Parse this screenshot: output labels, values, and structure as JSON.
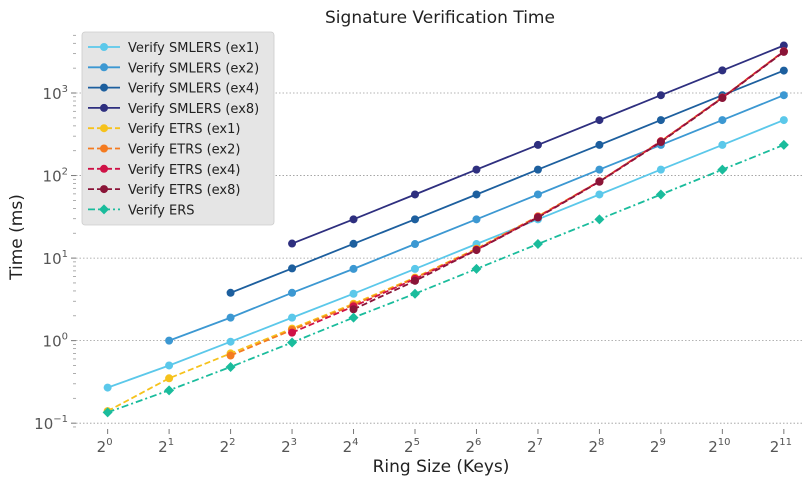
{
  "chart_data": {
    "type": "line",
    "title": "Signature Verification Time",
    "xlabel": "Ring Size (Keys)",
    "ylabel": "Time (ms)",
    "x_scale": "log2",
    "y_scale": "log10",
    "x_ticks": [
      {
        "base": "2",
        "exp": "0",
        "value": 1
      },
      {
        "base": "2",
        "exp": "1",
        "value": 2
      },
      {
        "base": "2",
        "exp": "2",
        "value": 4
      },
      {
        "base": "2",
        "exp": "3",
        "value": 8
      },
      {
        "base": "2",
        "exp": "4",
        "value": 16
      },
      {
        "base": "2",
        "exp": "5",
        "value": 32
      },
      {
        "base": "2",
        "exp": "6",
        "value": 64
      },
      {
        "base": "2",
        "exp": "7",
        "value": 128
      },
      {
        "base": "2",
        "exp": "8",
        "value": 256
      },
      {
        "base": "2",
        "exp": "9",
        "value": 512
      },
      {
        "base": "2",
        "exp": "10",
        "value": 1024
      },
      {
        "base": "2",
        "exp": "11",
        "value": 2048
      }
    ],
    "y_ticks": [
      {
        "base": "10",
        "exp": "−1",
        "value": 0.1
      },
      {
        "base": "10",
        "exp": "0",
        "value": 1
      },
      {
        "base": "10",
        "exp": "1",
        "value": 10
      },
      {
        "base": "10",
        "exp": "2",
        "value": 100
      },
      {
        "base": "10",
        "exp": "3",
        "value": 1000
      }
    ],
    "xlim": [
      0.7,
      2600
    ],
    "ylim": [
      0.085,
      5800
    ],
    "grid": "horizontal dotted at major y ticks",
    "legend_position": "top-left",
    "series": [
      {
        "name": "Verify SMLERS (ex1)",
        "color": "#5bc8ea",
        "linestyle": "solid",
        "marker": "circle",
        "x": [
          1,
          2,
          4,
          8,
          16,
          32,
          64,
          128,
          256,
          512,
          1024,
          2048
        ],
        "y": [
          0.27,
          0.5,
          0.97,
          1.9,
          3.7,
          7.4,
          14.8,
          29.5,
          59,
          118,
          235,
          470
        ]
      },
      {
        "name": "Verify SMLERS (ex2)",
        "color": "#3c98d2",
        "linestyle": "solid",
        "marker": "circle",
        "x": [
          2,
          4,
          8,
          16,
          32,
          64,
          128,
          256,
          512,
          1024,
          2048
        ],
        "y": [
          1.0,
          1.9,
          3.8,
          7.4,
          14.8,
          29.5,
          59,
          118,
          235,
          470,
          940
        ]
      },
      {
        "name": "Verify SMLERS (ex4)",
        "color": "#1d5f9e",
        "linestyle": "solid",
        "marker": "circle",
        "x": [
          4,
          8,
          16,
          32,
          64,
          128,
          256,
          512,
          1024,
          2048
        ],
        "y": [
          3.8,
          7.5,
          14.9,
          29.5,
          59,
          118,
          235,
          470,
          940,
          1870
        ]
      },
      {
        "name": "Verify SMLERS (ex8)",
        "color": "#2e2f7f",
        "linestyle": "solid",
        "marker": "circle",
        "x": [
          8,
          16,
          32,
          64,
          128,
          256,
          512,
          1024,
          2048
        ],
        "y": [
          15,
          29.5,
          59,
          118,
          235,
          470,
          940,
          1880,
          3760
        ]
      },
      {
        "name": "Verify ETRS (ex1)",
        "color": "#f6c21c",
        "linestyle": "dashed",
        "marker": "circle",
        "x": [
          1,
          2,
          4,
          8,
          16,
          32,
          64,
          128,
          256,
          512,
          1024,
          2048
        ],
        "y": [
          0.14,
          0.35,
          0.7,
          1.4,
          2.8,
          5.8,
          13,
          32,
          85,
          260,
          880,
          3200
        ]
      },
      {
        "name": "Verify ETRS (ex2)",
        "color": "#f47b20",
        "linestyle": "dashed",
        "marker": "circle",
        "x": [
          4,
          8,
          16,
          32,
          64,
          128,
          256,
          512,
          1024,
          2048
        ],
        "y": [
          0.66,
          1.35,
          2.7,
          5.7,
          12.8,
          32,
          85,
          260,
          880,
          3200
        ]
      },
      {
        "name": "Verify ETRS (ex4)",
        "color": "#cf1247",
        "linestyle": "dashed",
        "marker": "circle",
        "x": [
          8,
          16,
          32,
          64,
          128,
          256,
          512,
          1024,
          2048
        ],
        "y": [
          1.25,
          2.6,
          5.6,
          12.6,
          31.5,
          85,
          260,
          880,
          3200
        ]
      },
      {
        "name": "Verify ETRS (ex8)",
        "color": "#8a1538",
        "linestyle": "dashed",
        "marker": "circle",
        "x": [
          16,
          32,
          64,
          128,
          256,
          512,
          1024,
          2048
        ],
        "y": [
          2.4,
          5.3,
          12.5,
          31,
          84,
          255,
          870,
          3150
        ]
      },
      {
        "name": "Verify ERS",
        "color": "#1abc9c",
        "linestyle": "dashdot",
        "marker": "diamond",
        "x": [
          1,
          2,
          4,
          8,
          16,
          32,
          64,
          128,
          256,
          512,
          1024,
          2048
        ],
        "y": [
          0.135,
          0.25,
          0.48,
          0.95,
          1.9,
          3.7,
          7.4,
          14.8,
          29.5,
          59,
          118,
          235
        ]
      }
    ]
  }
}
